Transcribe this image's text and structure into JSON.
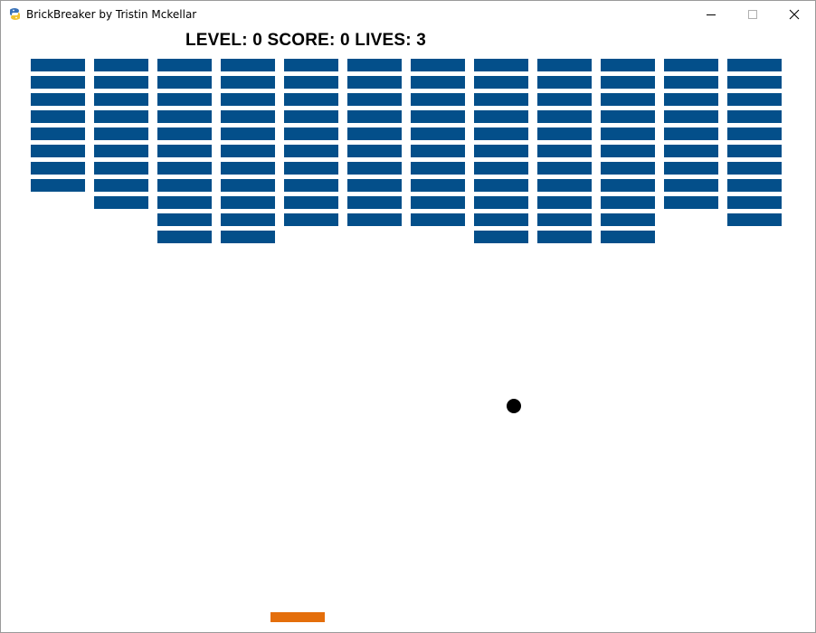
{
  "window": {
    "title": "BrickBreaker by Tristin Mckellar",
    "icon": "pygame-snake-icon",
    "buttons": [
      "minimize-icon",
      "maximize-icon",
      "close-icon"
    ]
  },
  "hud": {
    "text": "LEVEL: 0 SCORE: 0 LIVES: 3",
    "level": 0,
    "score": 0,
    "lives": 3
  },
  "colors": {
    "brick": "#034f8a",
    "paddle": "#e46e0b",
    "ball": "#000000",
    "background": "#ffffff"
  },
  "bricks": {
    "columns": 12,
    "column_heights": [
      8,
      9,
      11,
      11,
      10,
      10,
      10,
      11,
      11,
      11,
      9,
      10
    ]
  }
}
